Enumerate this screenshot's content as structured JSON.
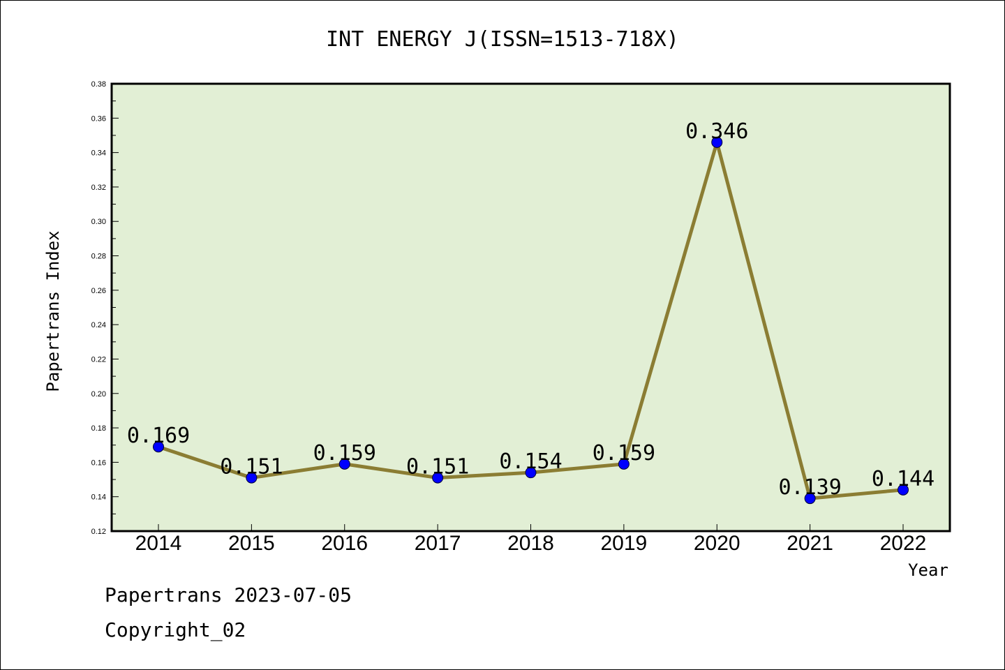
{
  "footer": {
    "line1": "Papertrans 2023-07-05",
    "line2": "Copyright_02"
  },
  "chart_data": {
    "type": "line",
    "title": "INT ENERGY J(ISSN=1513-718X)",
    "xlabel": "Year",
    "ylabel": "Papertrans Index",
    "categories": [
      "2014",
      "2015",
      "2016",
      "2017",
      "2018",
      "2019",
      "2020",
      "2021",
      "2022"
    ],
    "values": [
      0.169,
      0.151,
      0.159,
      0.151,
      0.154,
      0.159,
      0.346,
      0.139,
      0.144
    ],
    "data_labels": [
      "0.169",
      "0.151",
      "0.159",
      "0.151",
      "0.154",
      "0.159",
      "0.346",
      "0.139",
      "0.144"
    ],
    "ylim": [
      0.12,
      0.38
    ],
    "yticks": [
      "0.12",
      "0.14",
      "0.16",
      "0.18",
      "0.20",
      "0.22",
      "0.24",
      "0.26",
      "0.28",
      "0.30",
      "0.32",
      "0.34",
      "0.36",
      "0.38"
    ],
    "grid": false,
    "legend": "none",
    "colors": {
      "plot_background": "#e2efd5",
      "line": "#8b7d33",
      "marker": "#0000ff"
    }
  }
}
